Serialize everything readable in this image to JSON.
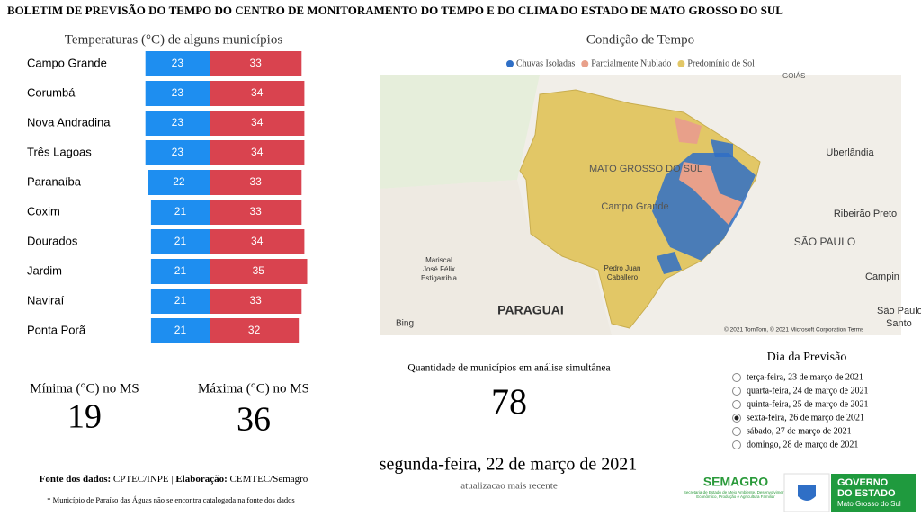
{
  "header": {
    "title": "BOLETIM DE PREVISÃO DO TEMPO DO CENTRO DE MONITORAMENTO DO TEMPO E DO CLIMA DO ESTADO DE MATO GROSSO DO SUL"
  },
  "chart_data": {
    "type": "diverging-bar",
    "title": "Temperaturas (°C) de alguns municípios",
    "categories": [
      "Campo Grande",
      "Corumbá",
      "Nova Andradina",
      "Três Lagoas",
      "Paranaíba",
      "Coxim",
      "Dourados",
      "Jardim",
      "Naviraí",
      "Ponta Porã"
    ],
    "series": [
      {
        "color": "#1e8ef0",
        "values": [
          23,
          23,
          23,
          23,
          22,
          21,
          21,
          21,
          21,
          21
        ]
      },
      {
        "color": "#d9434f",
        "values": [
          33,
          34,
          34,
          34,
          33,
          33,
          34,
          35,
          33,
          32
        ]
      }
    ]
  },
  "stats": {
    "min_label": "Mínima (°C) no MS",
    "min_value": 19,
    "max_label": "Máxima (°C) no MS",
    "max_value": 36,
    "count_label": "Quantidade de municípios em análise simultânea",
    "count_value": 78
  },
  "map": {
    "title": "Condição de Tempo",
    "legend": [
      {
        "name": "Chuvas Isoladas",
        "color": "#2f6fc6"
      },
      {
        "name": "Parcialmente Nublado",
        "color": "#e8a08a"
      },
      {
        "name": "Predomínio de Sol",
        "color": "#e2c766"
      }
    ],
    "labels": [
      "MATO GROSSO DO SUL",
      "Campo Grande",
      "Uberlândia",
      "Ribeirão Preto",
      "SÃO PAULO",
      "Mariscal José Félix Estigarribia",
      "Pedro Juan Caballero",
      "PARAGUAI",
      "Bing",
      "© 2021 TomTom, © 2021 Microsoft Corporation Terms",
      "GOIÁS",
      "Campin",
      "São Paulo",
      "Santo"
    ]
  },
  "date": {
    "current": "segunda-feira, 22 de março de 2021",
    "caption": "atualizacao mais recente"
  },
  "forecast": {
    "title": "Dia da Previsão",
    "options": [
      "terça-feira, 23 de março de 2021",
      "quarta-feira, 24 de março de 2021",
      "quinta-feira, 25 de março de 2021",
      "sexta-feira, 26 de março de 2021",
      "sábado, 27 de março de 2021",
      "domingo, 28 de março de 2021"
    ],
    "selected": 3
  },
  "footer": {
    "source_label": "Fonte dos dados:",
    "source": "CPTEC/INPE",
    "sep": "|",
    "elab_label": "Elaboração:",
    "elab": "CEMTEC/Semagro",
    "note": "* Município de Paraíso das Águas não se encontra catalogada na fonte dos dados"
  },
  "logos": {
    "semagro": "SEMAGRO",
    "semagro_sub": "Secretaria de Estado de Meio Ambiente, Desenvolvimento Econômico, Produção e Agricultura Familiar",
    "gov1": "GOVERNO",
    "gov2": "DO ESTADO",
    "gov3": "Mato Grosso do Sul"
  }
}
